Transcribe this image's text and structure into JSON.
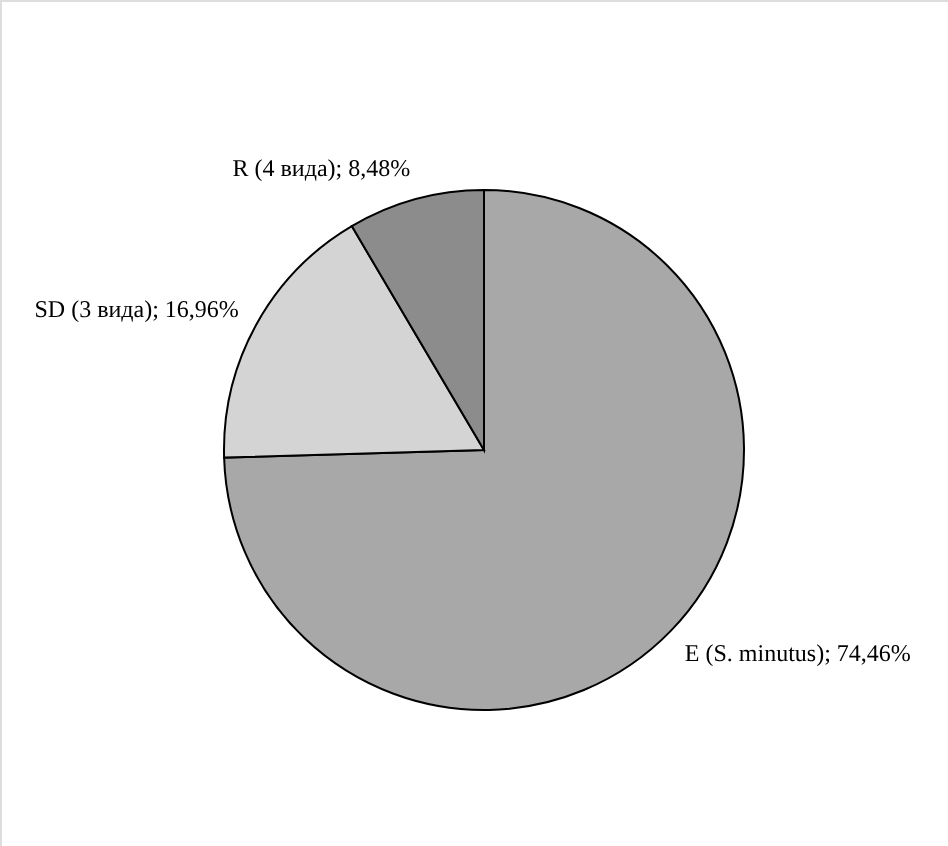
{
  "chart_data": {
    "type": "pie",
    "categories": [
      "E (S. minutus)",
      "SD (3 вида)",
      "R (4 вида)"
    ],
    "values": [
      74.46,
      16.96,
      8.48
    ],
    "value_labels": [
      "74,46%",
      "16,96%",
      "8,48%"
    ],
    "colors": [
      "#a8a8a8",
      "#d4d4d4",
      "#8c8c8c"
    ]
  }
}
